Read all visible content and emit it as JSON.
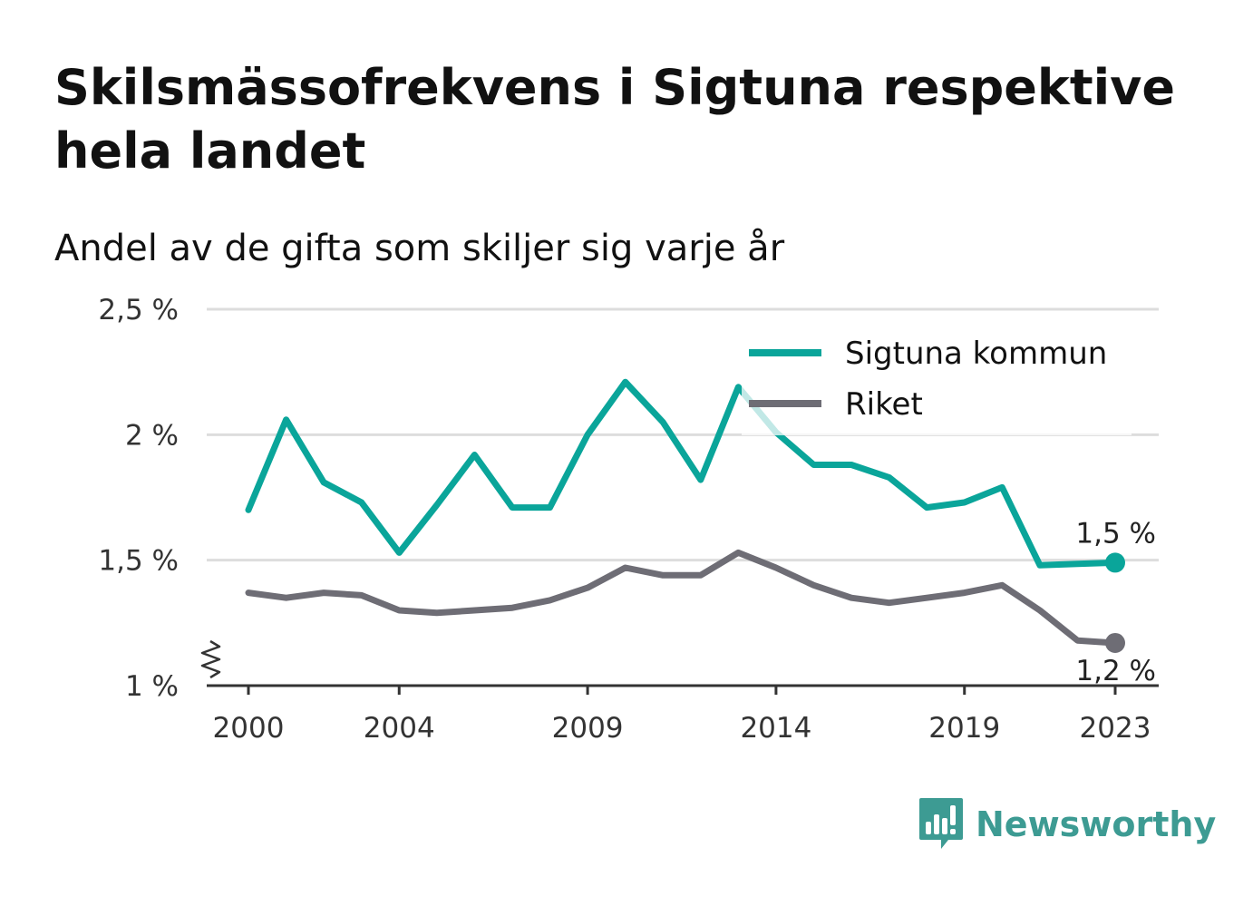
{
  "header": {
    "title": "Skilsmässofrekvens i Sigtuna respektive hela landet",
    "subtitle": "Andel av de gifta som skiljer sig varje år"
  },
  "brand": {
    "name": "Newsworthy",
    "icon": "bar-chart-speech-bubble-icon",
    "color": "#3d9b93"
  },
  "colors": {
    "sigtuna": "#0aa59a",
    "riket": "#6e6d75",
    "grid": "#dddddd",
    "axis": "#333333"
  },
  "chart_data": {
    "type": "line",
    "title": "Skilsmässofrekvens i Sigtuna respektive hela landet",
    "subtitle": "Andel av de gifta som skiljer sig varje år",
    "xlabel": "",
    "ylabel": "",
    "x": [
      2000,
      2001,
      2002,
      2003,
      2004,
      2005,
      2006,
      2007,
      2008,
      2009,
      2010,
      2011,
      2012,
      2013,
      2014,
      2015,
      2016,
      2017,
      2018,
      2019,
      2020,
      2021,
      2022,
      2023
    ],
    "x_ticks": [
      "2000",
      "2004",
      "2009",
      "2014",
      "2019",
      "2023"
    ],
    "x_tick_values": [
      2000,
      2004,
      2009,
      2014,
      2019,
      2023
    ],
    "ylim": [
      1.0,
      2.5
    ],
    "y_ticks": [
      "1 %",
      "1,5 %",
      "2 %",
      "2,5 %"
    ],
    "y_tick_values": [
      1.0,
      1.5,
      2.0,
      2.5
    ],
    "y_axis_break": true,
    "grid": true,
    "legend_position": "top-right",
    "series": [
      {
        "name": "Sigtuna kommun",
        "color": "#0aa59a",
        "values": [
          1.7,
          2.06,
          1.81,
          1.73,
          1.53,
          1.72,
          1.92,
          1.71,
          1.71,
          2.0,
          2.21,
          2.05,
          1.82,
          2.19,
          2.01,
          1.88,
          1.88,
          1.83,
          1.71,
          1.73,
          1.79,
          1.48,
          1.485,
          1.49
        ],
        "end_label": "1,5 %"
      },
      {
        "name": "Riket",
        "color": "#6e6d75",
        "values": [
          1.37,
          1.35,
          1.37,
          1.36,
          1.3,
          1.29,
          1.3,
          1.31,
          1.34,
          1.39,
          1.47,
          1.44,
          1.44,
          1.53,
          1.47,
          1.4,
          1.35,
          1.33,
          1.35,
          1.37,
          1.4,
          1.3,
          1.18,
          1.17
        ],
        "end_label": "1,2 %"
      }
    ]
  }
}
